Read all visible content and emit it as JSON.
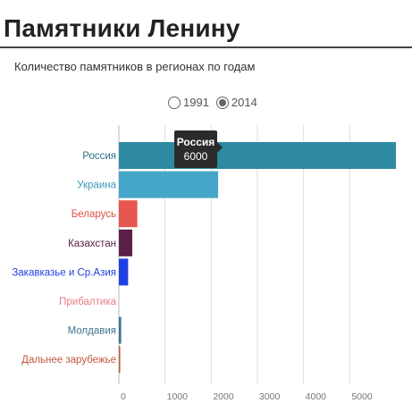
{
  "header": {
    "title": "Памятники Ленину",
    "subtitle": "Количество памятников в регионах по годам"
  },
  "year_toggle": {
    "options": [
      {
        "label": "1991",
        "selected": false
      },
      {
        "label": "2014",
        "selected": true
      }
    ]
  },
  "tooltip": {
    "name": "Россия",
    "value": "6000"
  },
  "chart_data": {
    "type": "bar",
    "orientation": "horizontal",
    "categories": [
      "Россия",
      "Украина",
      "Беларусь",
      "Казахстан",
      "Закавказье и Ср.Азия",
      "Прибалтика",
      "Молдавия",
      "Дальнее зарубежье"
    ],
    "values": [
      6000,
      2150,
      400,
      290,
      200,
      0,
      50,
      30
    ],
    "colors": [
      "#2e8aa3",
      "#45a6c9",
      "#e8574f",
      "#5b2048",
      "#1f3fe0",
      "#e87a85",
      "#3d7391",
      "#c05a3d"
    ],
    "label_colors": [
      "#2e6f86",
      "#3c98bd",
      "#e0514a",
      "#5b2048",
      "#1f3fe0",
      "#e87a85",
      "#3d7391",
      "#c05a3d"
    ],
    "xticks": [
      0,
      1000,
      2000,
      3000,
      4000,
      5000
    ],
    "xlim": [
      0,
      6000
    ],
    "grid": true,
    "title": "",
    "xlabel": "",
    "ylabel": ""
  }
}
